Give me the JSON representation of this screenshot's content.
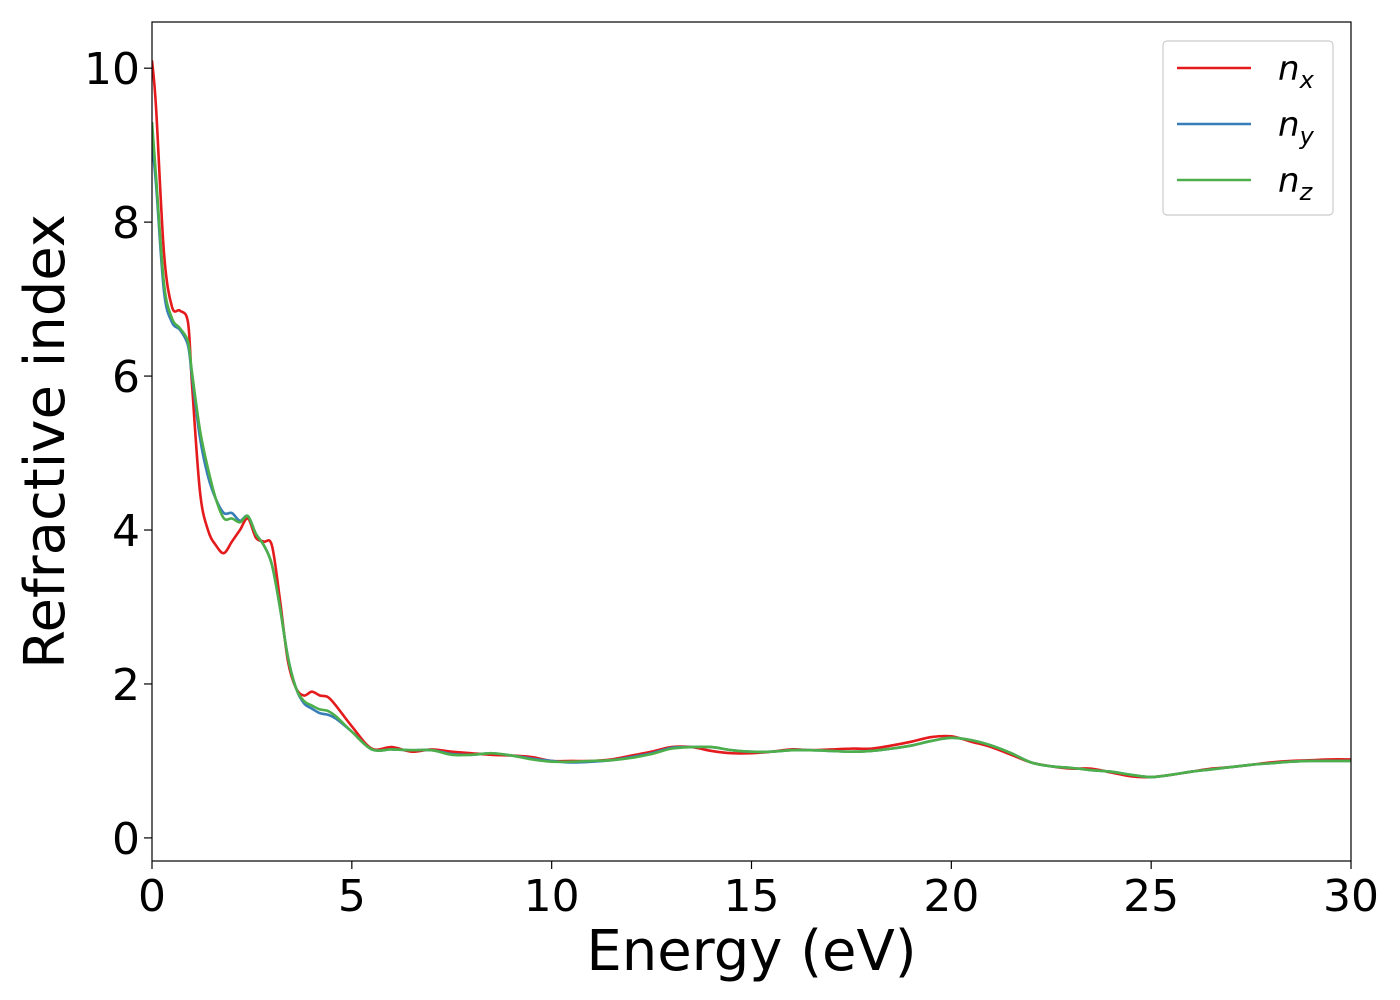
{
  "chart_data": {
    "type": "line",
    "title": "",
    "xlabel": "Energy (eV)",
    "ylabel": "Refractive index",
    "xlim": [
      0,
      30
    ],
    "ylim": [
      -0.3,
      10.6
    ],
    "xticks": [
      0,
      5,
      10,
      15,
      20,
      25,
      30
    ],
    "yticks": [
      0,
      2,
      4,
      6,
      8,
      10
    ],
    "grid": false,
    "legend_position": "top-right",
    "series": [
      {
        "name": "n",
        "subscript": "x",
        "color": "#e41a1c",
        "x": [
          0,
          0.1,
          0.3,
          0.5,
          0.7,
          0.9,
          1.0,
          1.2,
          1.4,
          1.6,
          1.8,
          2.0,
          2.2,
          2.4,
          2.6,
          2.8,
          3.0,
          3.2,
          3.4,
          3.6,
          3.8,
          4.0,
          4.2,
          4.4,
          4.6,
          5.0,
          5.5,
          6.0,
          6.5,
          7.0,
          7.5,
          8.0,
          8.5,
          9.0,
          9.5,
          10.0,
          10.5,
          11.0,
          11.5,
          12.0,
          12.5,
          13.0,
          13.5,
          14.0,
          14.5,
          15.0,
          15.5,
          16.0,
          16.5,
          17.0,
          17.5,
          18.0,
          18.5,
          19.0,
          19.5,
          20.0,
          20.5,
          21.0,
          21.5,
          22.0,
          22.5,
          23.0,
          23.5,
          24.0,
          24.5,
          25.0,
          25.5,
          26.0,
          26.5,
          27.0,
          27.5,
          28.0,
          28.5,
          29.0,
          29.5,
          30.0
        ],
        "y": [
          10.1,
          9.5,
          7.6,
          6.9,
          6.85,
          6.7,
          5.9,
          4.5,
          4.0,
          3.8,
          3.7,
          3.85,
          4.0,
          4.15,
          3.9,
          3.85,
          3.8,
          3.1,
          2.3,
          1.95,
          1.85,
          1.9,
          1.85,
          1.83,
          1.72,
          1.45,
          1.16,
          1.18,
          1.12,
          1.15,
          1.12,
          1.1,
          1.08,
          1.07,
          1.05,
          1.0,
          1.0,
          1.0,
          1.02,
          1.07,
          1.12,
          1.18,
          1.18,
          1.13,
          1.1,
          1.1,
          1.12,
          1.15,
          1.14,
          1.15,
          1.16,
          1.16,
          1.2,
          1.25,
          1.31,
          1.32,
          1.25,
          1.18,
          1.08,
          0.98,
          0.93,
          0.9,
          0.9,
          0.85,
          0.8,
          0.79,
          0.82,
          0.86,
          0.9,
          0.92,
          0.95,
          0.98,
          1.0,
          1.01,
          1.02,
          1.02
        ]
      },
      {
        "name": "n",
        "subscript": "y",
        "color": "#377eb8",
        "x": [
          0,
          0.1,
          0.3,
          0.5,
          0.7,
          0.9,
          1.0,
          1.2,
          1.4,
          1.6,
          1.8,
          2.0,
          2.2,
          2.4,
          2.6,
          2.8,
          3.0,
          3.2,
          3.4,
          3.6,
          3.8,
          4.0,
          4.2,
          4.4,
          4.6,
          5.0,
          5.5,
          6.0,
          6.5,
          7.0,
          7.5,
          8.0,
          8.5,
          9.0,
          9.5,
          10.0,
          10.5,
          11.0,
          11.5,
          12.0,
          12.5,
          13.0,
          13.5,
          14.0,
          14.5,
          15.0,
          15.5,
          16.0,
          16.5,
          17.0,
          17.5,
          18.0,
          18.5,
          19.0,
          19.5,
          20.0,
          20.5,
          21.0,
          21.5,
          22.0,
          22.5,
          23.0,
          23.5,
          24.0,
          24.5,
          25.0,
          25.5,
          26.0,
          26.5,
          27.0,
          27.5,
          28.0,
          28.5,
          29.0,
          29.5,
          30.0
        ],
        "y": [
          9.0,
          8.5,
          7.1,
          6.7,
          6.6,
          6.4,
          6.0,
          5.2,
          4.7,
          4.4,
          4.22,
          4.22,
          4.12,
          4.18,
          3.95,
          3.8,
          3.55,
          3.0,
          2.35,
          1.95,
          1.75,
          1.68,
          1.62,
          1.6,
          1.55,
          1.38,
          1.15,
          1.15,
          1.14,
          1.14,
          1.09,
          1.08,
          1.1,
          1.07,
          1.03,
          1.0,
          0.98,
          0.99,
          1.01,
          1.05,
          1.1,
          1.17,
          1.18,
          1.18,
          1.14,
          1.12,
          1.12,
          1.14,
          1.14,
          1.13,
          1.12,
          1.13,
          1.16,
          1.2,
          1.26,
          1.3,
          1.27,
          1.2,
          1.1,
          0.98,
          0.93,
          0.91,
          0.88,
          0.86,
          0.82,
          0.79,
          0.82,
          0.86,
          0.89,
          0.92,
          0.95,
          0.97,
          0.99,
          1.0,
          1.0,
          1.0
        ]
      },
      {
        "name": "n",
        "subscript": "z",
        "color": "#4daf4a",
        "x": [
          0,
          0.1,
          0.3,
          0.5,
          0.7,
          0.9,
          1.0,
          1.2,
          1.4,
          1.6,
          1.8,
          2.0,
          2.2,
          2.4,
          2.6,
          2.8,
          3.0,
          3.2,
          3.4,
          3.6,
          3.8,
          4.0,
          4.2,
          4.4,
          4.6,
          5.0,
          5.5,
          6.0,
          6.5,
          7.0,
          7.5,
          8.0,
          8.5,
          9.0,
          9.5,
          10.0,
          10.5,
          11.0,
          11.5,
          12.0,
          12.5,
          13.0,
          13.5,
          14.0,
          14.5,
          15.0,
          15.5,
          16.0,
          16.5,
          17.0,
          17.5,
          18.0,
          18.5,
          19.0,
          19.5,
          20.0,
          20.5,
          21.0,
          21.5,
          22.0,
          22.5,
          23.0,
          23.5,
          24.0,
          24.5,
          25.0,
          25.5,
          26.0,
          26.5,
          27.0,
          27.5,
          28.0,
          28.5,
          29.0,
          29.5,
          30.0
        ],
        "y": [
          9.3,
          8.6,
          7.2,
          6.75,
          6.62,
          6.45,
          6.05,
          5.3,
          4.8,
          4.4,
          4.15,
          4.15,
          4.1,
          4.18,
          3.95,
          3.8,
          3.55,
          3.0,
          2.35,
          1.95,
          1.78,
          1.72,
          1.67,
          1.65,
          1.58,
          1.38,
          1.15,
          1.15,
          1.14,
          1.14,
          1.08,
          1.08,
          1.1,
          1.07,
          1.02,
          0.99,
          0.99,
          1.0,
          1.01,
          1.04,
          1.09,
          1.16,
          1.18,
          1.18,
          1.14,
          1.12,
          1.12,
          1.14,
          1.14,
          1.13,
          1.12,
          1.13,
          1.16,
          1.2,
          1.26,
          1.3,
          1.27,
          1.2,
          1.1,
          0.98,
          0.93,
          0.91,
          0.88,
          0.86,
          0.82,
          0.79,
          0.82,
          0.86,
          0.89,
          0.92,
          0.95,
          0.97,
          0.99,
          1.0,
          1.0,
          1.0
        ]
      }
    ]
  }
}
